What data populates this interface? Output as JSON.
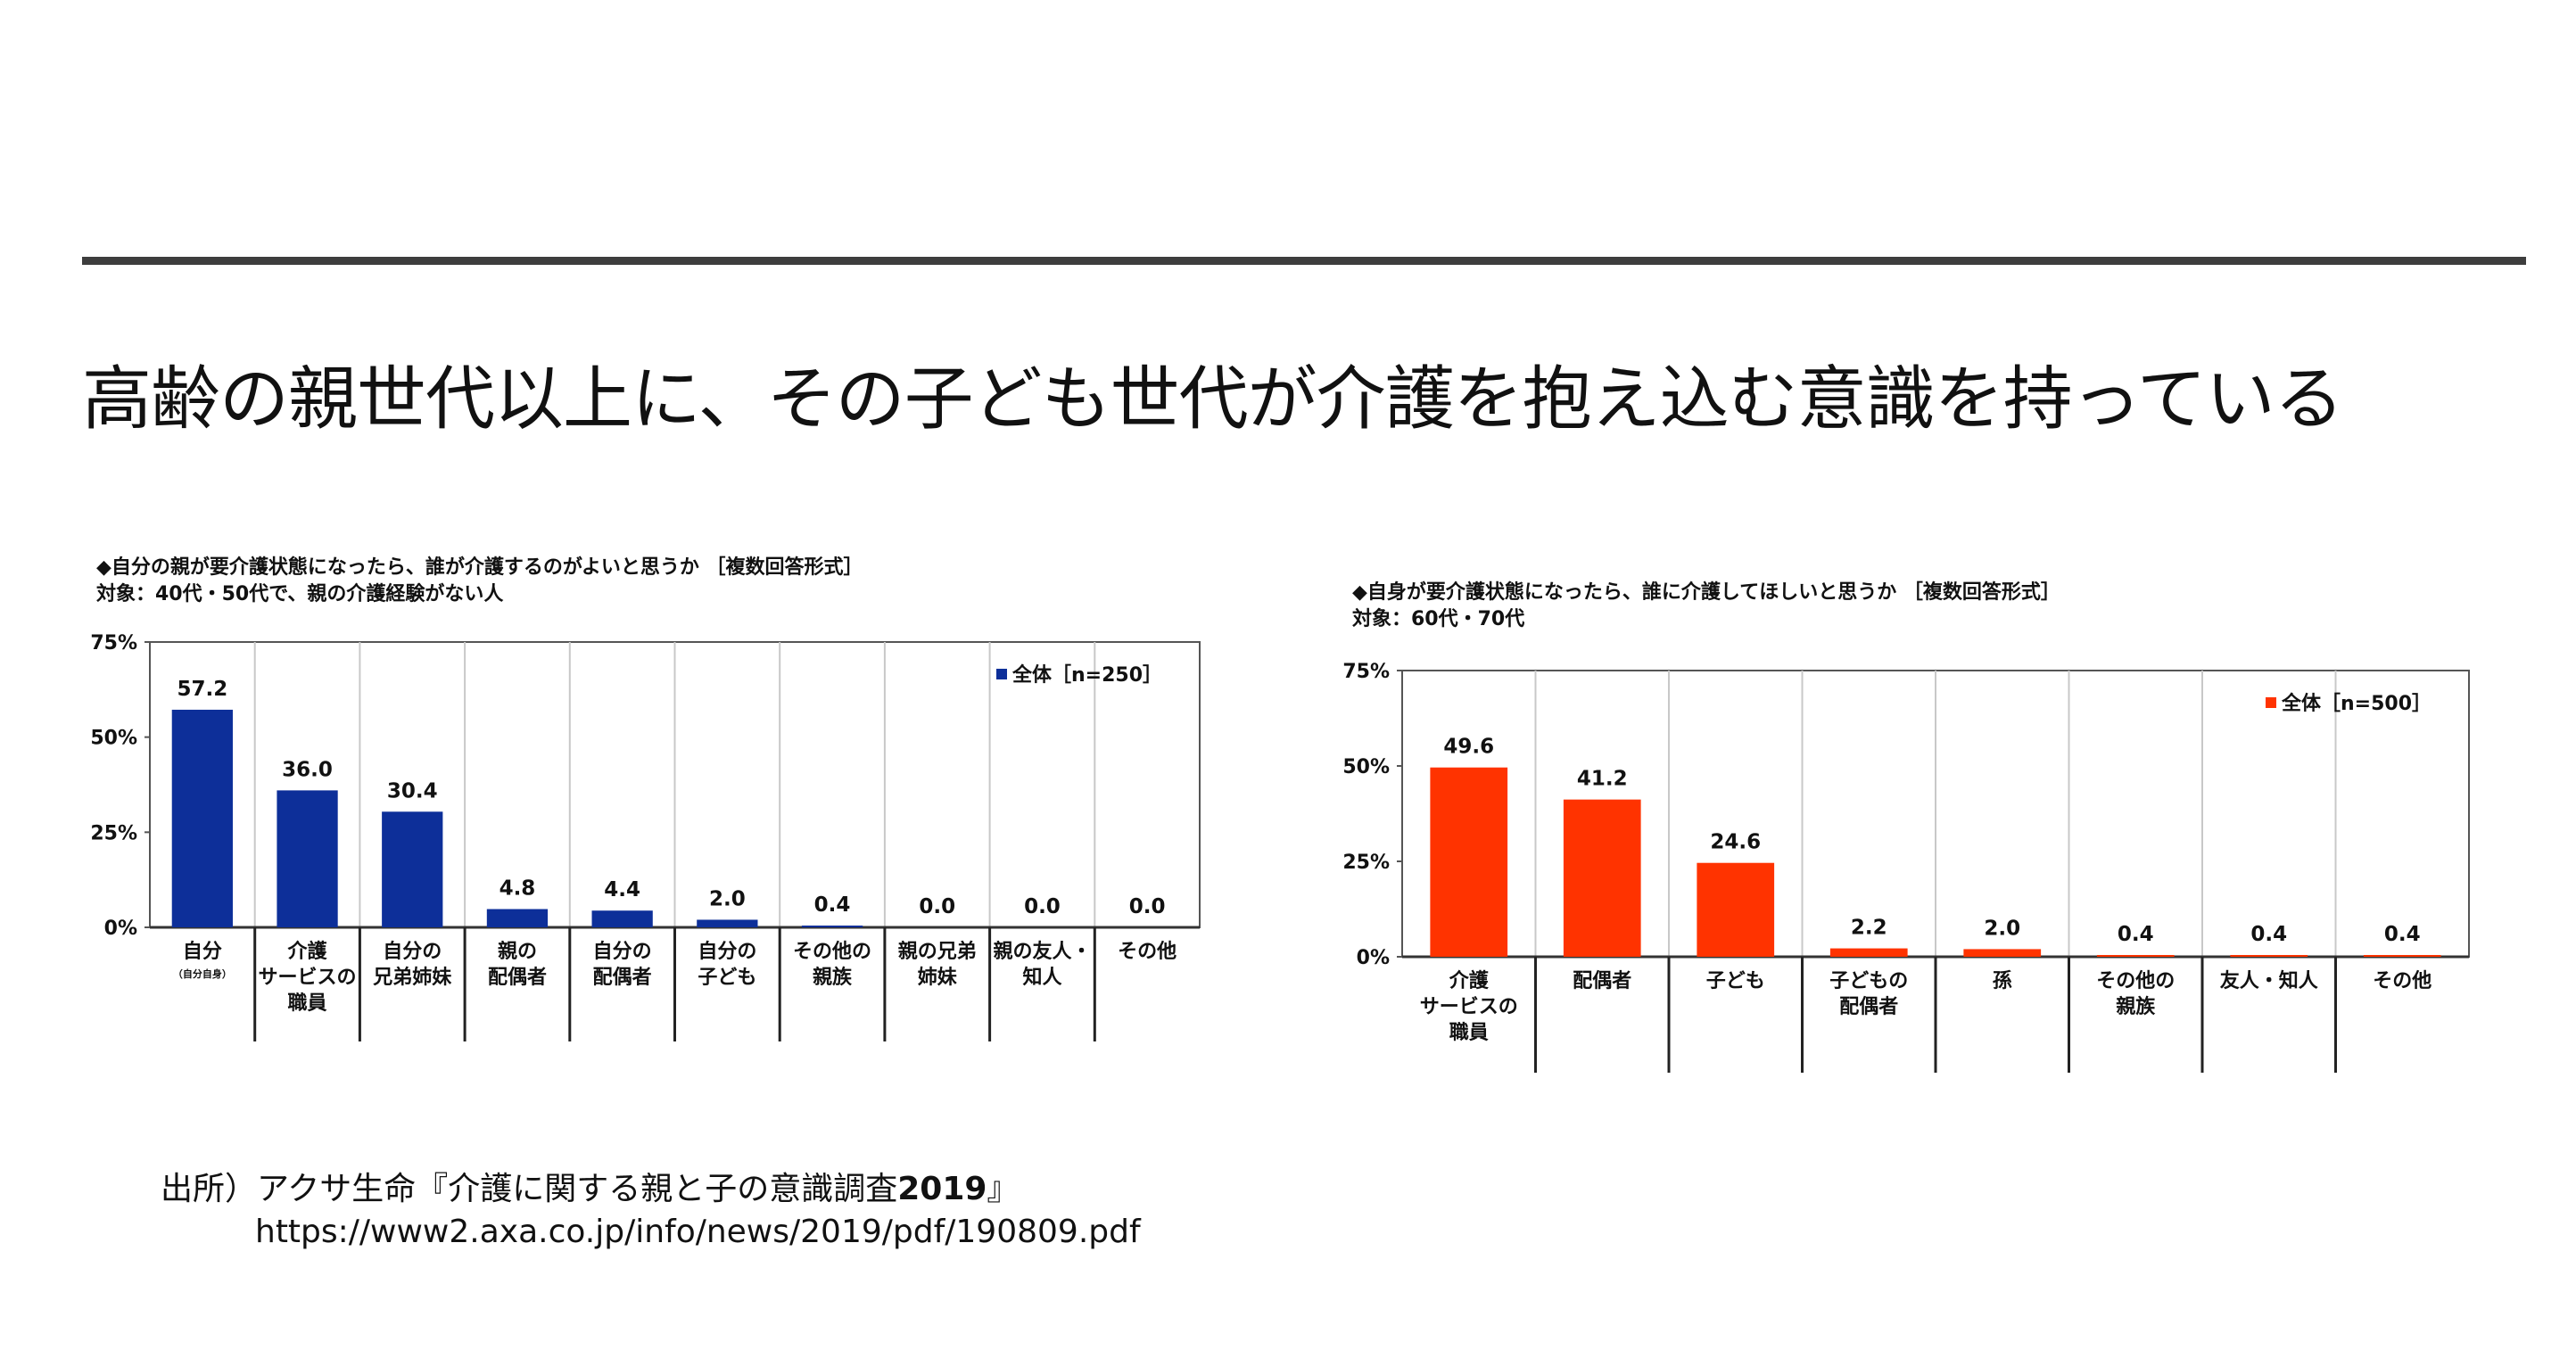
{
  "page": {
    "title": "高齢の親世代以上に、その子ども世代が介護を抱え込む意識を持っている"
  },
  "source": {
    "prefix": "出所）",
    "text": "アクサ生命『介護に関する親と子の意識調査",
    "year": "2019",
    "close": "』",
    "url": "https://www2.axa.co.jp/info/news/2019/pdf/190809.pdf"
  },
  "chart_data": [
    {
      "type": "bar",
      "title": "◆自分の親が要介護状態になったら、誰が介護するのがよいと思うか ［複数回答形式］",
      "subtitle": "対象：40代・50代で、親の介護経験がない人",
      "ylim": [
        0,
        75
      ],
      "yticks": [
        0,
        25,
        50,
        75
      ],
      "ytick_labels": [
        "0%",
        "25%",
        "50%",
        "75%"
      ],
      "grid": "vertical",
      "legend_placement": "top-right",
      "color": "#0d2f99",
      "categories": [
        [
          "自分",
          "（自分自身）"
        ],
        [
          "介護",
          "サービスの",
          "職員"
        ],
        [
          "自分の",
          "兄弟姉妹"
        ],
        [
          "親の",
          "配偶者"
        ],
        [
          "自分の",
          "配偶者"
        ],
        [
          "自分の",
          "子ども"
        ],
        [
          "その他の",
          "親族"
        ],
        [
          "親の兄弟",
          "姉妹"
        ],
        [
          "親の友人・",
          "知人"
        ],
        [
          "その他"
        ]
      ],
      "series": [
        {
          "name": "全体［n=250］",
          "values": [
            57.2,
            36.0,
            30.4,
            4.8,
            4.4,
            2.0,
            0.4,
            0.0,
            0.0,
            0.0
          ]
        }
      ],
      "value_labels": [
        "57.2",
        "36.0",
        "30.4",
        "4.8",
        "4.4",
        "2.0",
        "0.4",
        "0.0",
        "0.0",
        "0.0"
      ]
    },
    {
      "type": "bar",
      "title": "◆自身が要介護状態になったら、誰に介護してほしいと思うか ［複数回答形式］",
      "subtitle": "対象：60代・70代",
      "ylim": [
        0,
        75
      ],
      "yticks": [
        0,
        25,
        50,
        75
      ],
      "ytick_labels": [
        "0%",
        "25%",
        "50%",
        "75%"
      ],
      "grid": "vertical",
      "legend_placement": "top-right",
      "color": "#ff3300",
      "categories": [
        [
          "介護",
          "サービスの",
          "職員"
        ],
        [
          "配偶者"
        ],
        [
          "子ども"
        ],
        [
          "子どもの",
          "配偶者"
        ],
        [
          "孫"
        ],
        [
          "その他の",
          "親族"
        ],
        [
          "友人・知人"
        ],
        [
          "その他"
        ]
      ],
      "series": [
        {
          "name": "全体［n=500］",
          "values": [
            49.6,
            41.2,
            24.6,
            2.2,
            2.0,
            0.4,
            0.4,
            0.4
          ]
        }
      ],
      "value_labels": [
        "49.6",
        "41.2",
        "24.6",
        "2.2",
        "2.0",
        "0.4",
        "0.4",
        "0.4"
      ]
    }
  ]
}
